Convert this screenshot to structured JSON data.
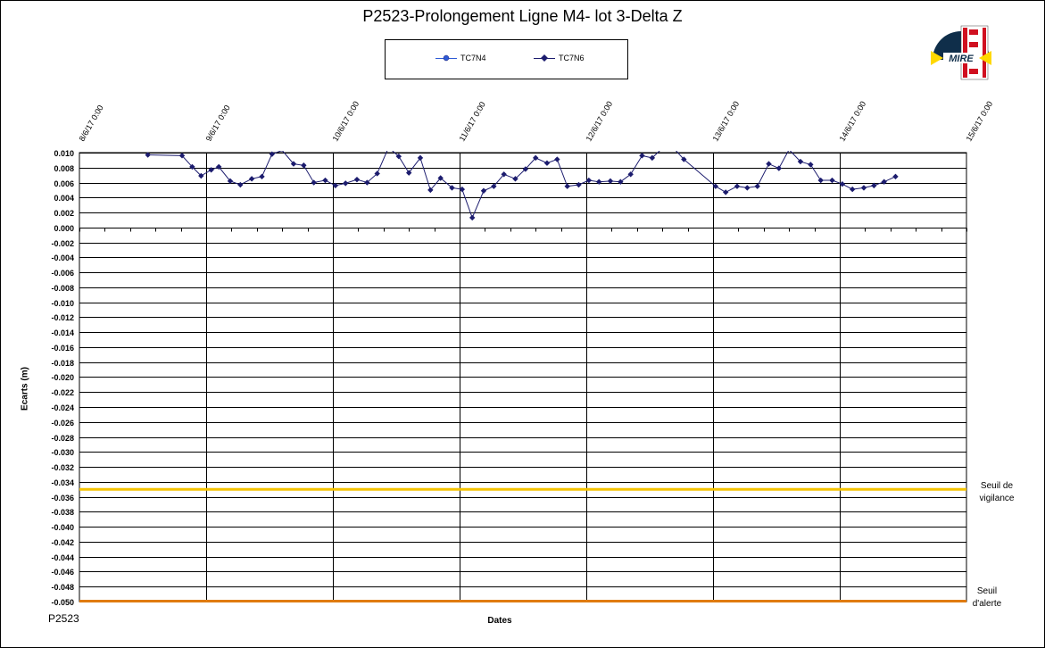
{
  "title": "P2523-Prolongement  Ligne  M4- lot  3-Delta  Z",
  "bottom_label": "P2523",
  "logo_text": "MIRE",
  "thresholds": {
    "vigilance_label_1": "Seuil de",
    "vigilance_label_2": "vigilance",
    "alerte_label_1": "Seuil",
    "alerte_label_2": "d'alerte",
    "vigilance_color": "#f5c400",
    "alerte_color": "#e07b10"
  },
  "chart_data": {
    "type": "line",
    "title": "P2523-Prolongement  Ligne  M4- lot  3-Delta  Z",
    "xlabel": "Dates",
    "ylabel": "Ecarts (m)",
    "ylim": [
      -0.05,
      0.01
    ],
    "ytick_step": 0.002,
    "yticks": [
      "0.010",
      "0.008",
      "0.006",
      "0.004",
      "0.002",
      "0.000",
      "-0.002",
      "-0.004",
      "-0.006",
      "-0.008",
      "-0.010",
      "-0.012",
      "-0.014",
      "-0.016",
      "-0.018",
      "-0.020",
      "-0.022",
      "-0.024",
      "-0.026",
      "-0.028",
      "-0.030",
      "-0.032",
      "-0.034",
      "-0.036",
      "-0.038",
      "-0.040",
      "-0.042",
      "-0.044",
      "-0.046",
      "-0.048",
      "-0.050"
    ],
    "xlim": [
      8,
      15
    ],
    "xticks": [
      "8/6/17 0:00",
      "9/6/17 0:00",
      "10/6/17 0:00",
      "11/6/17 0:00",
      "12/6/17 0:00",
      "13/6/17 0:00",
      "14/6/17 0:00",
      "15/6/17 0:00"
    ],
    "grid": true,
    "legend_position": "top-center",
    "thresholds": [
      {
        "name": "Seuil de vigilance",
        "value": -0.035,
        "color": "#f5c400"
      },
      {
        "name": "Seuil d'alerte",
        "value": -0.05,
        "color": "#e07b10"
      }
    ],
    "series": [
      {
        "name": "TC7N4",
        "color": "#2e5bd6",
        "marker": "circle",
        "points": []
      },
      {
        "name": "TC7N6",
        "color": "#1c1c6e",
        "marker": "diamond",
        "points": [
          [
            8.54,
            0.0097
          ],
          [
            8.81,
            0.0096
          ],
          [
            8.89,
            0.0081
          ],
          [
            8.96,
            0.0069
          ],
          [
            9.04,
            0.0077
          ],
          [
            9.1,
            0.0081
          ],
          [
            9.19,
            0.0062
          ],
          [
            9.27,
            0.0057
          ],
          [
            9.36,
            0.0065
          ],
          [
            9.44,
            0.0068
          ],
          [
            9.52,
            0.0098
          ],
          [
            9.6,
            0.0103
          ],
          [
            9.69,
            0.0085
          ],
          [
            9.77,
            0.0083
          ],
          [
            9.85,
            0.006
          ],
          [
            9.94,
            0.0063
          ],
          [
            10.02,
            0.0056
          ],
          [
            10.1,
            0.0059
          ],
          [
            10.19,
            0.0064
          ],
          [
            10.27,
            0.006
          ],
          [
            10.35,
            0.0072
          ],
          [
            10.44,
            0.0107
          ],
          [
            10.52,
            0.0095
          ],
          [
            10.6,
            0.0073
          ],
          [
            10.69,
            0.0093
          ],
          [
            10.77,
            0.005
          ],
          [
            10.85,
            0.0066
          ],
          [
            10.94,
            0.0053
          ],
          [
            11.02,
            0.0051
          ],
          [
            11.1,
            0.0013
          ],
          [
            11.19,
            0.0049
          ],
          [
            11.27,
            0.0055
          ],
          [
            11.35,
            0.0071
          ],
          [
            11.44,
            0.0065
          ],
          [
            11.52,
            0.0078
          ],
          [
            11.6,
            0.0093
          ],
          [
            11.69,
            0.0086
          ],
          [
            11.77,
            0.0091
          ],
          [
            11.85,
            0.0055
          ],
          [
            11.94,
            0.0057
          ],
          [
            12.02,
            0.0063
          ],
          [
            12.1,
            0.0061
          ],
          [
            12.19,
            0.0062
          ],
          [
            12.27,
            0.0061
          ],
          [
            12.35,
            0.0071
          ],
          [
            12.44,
            0.0096
          ],
          [
            12.52,
            0.0093
          ],
          [
            12.6,
            0.0106
          ],
          [
            12.69,
            0.0106
          ],
          [
            12.77,
            0.0091
          ],
          [
            13.02,
            0.0055
          ],
          [
            13.1,
            0.0047
          ],
          [
            13.19,
            0.0055
          ],
          [
            13.27,
            0.0053
          ],
          [
            13.35,
            0.0055
          ],
          [
            13.44,
            0.0085
          ],
          [
            13.52,
            0.0079
          ],
          [
            13.6,
            0.0104
          ],
          [
            13.69,
            0.0088
          ],
          [
            13.77,
            0.0084
          ],
          [
            13.85,
            0.0063
          ],
          [
            13.94,
            0.0063
          ],
          [
            14.02,
            0.0058
          ],
          [
            14.1,
            0.0051
          ],
          [
            14.19,
            0.0053
          ],
          [
            14.27,
            0.0056
          ],
          [
            14.35,
            0.0061
          ],
          [
            14.44,
            0.0068
          ]
        ]
      }
    ]
  }
}
